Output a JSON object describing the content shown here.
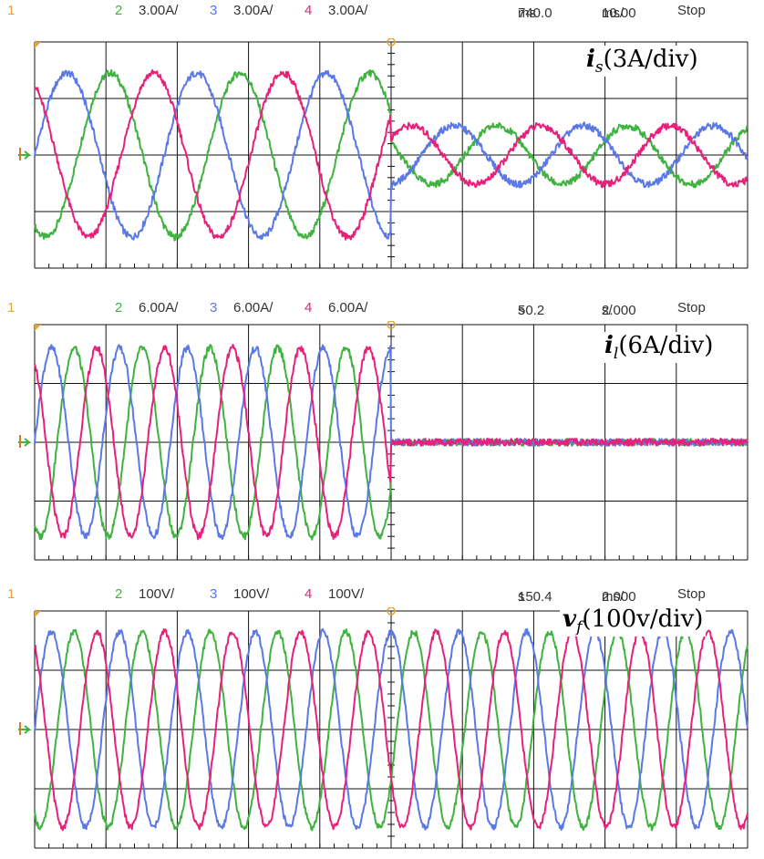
{
  "colors": {
    "ch1": "#e8a23a",
    "ch2": "#3fb23f",
    "ch3": "#5a78e6",
    "ch4": "#e8207a",
    "grid": "#111111"
  },
  "chart_data": [
    {
      "type": "line",
      "header": {
        "ch1": "1",
        "ch2": "2",
        "ch2_scale": "3.00A/",
        "ch3": "3",
        "ch3_scale": "3.00A/",
        "ch4": "4",
        "ch4_scale": "3.00A/",
        "position": "740.0",
        "position_unit": "ms",
        "timebase": "10.00",
        "timebase_unit": "ms/",
        "state": "Stop"
      },
      "label": {
        "symbol": "i",
        "sub": "s",
        "text": "(3A/div)"
      },
      "divisions": {
        "x": 10,
        "y": 4
      },
      "ylim": [
        -2,
        2
      ],
      "trigger_division": 5,
      "series": [
        {
          "channel": "2",
          "color": "ch2",
          "amplitude_before": 1.45,
          "amplitude_after": 0.45,
          "phase_deg": 240,
          "cycles_per_div": 0.55,
          "noise": 0.06
        },
        {
          "channel": "3",
          "color": "ch3",
          "amplitude_before": 1.45,
          "amplitude_after": 0.45,
          "phase_deg": 0,
          "cycles_per_div": 0.55,
          "noise": 0.06
        },
        {
          "channel": "4",
          "color": "ch4",
          "amplitude_before": 1.45,
          "amplitude_after": 0.45,
          "phase_deg": 120,
          "cycles_per_div": 0.55,
          "noise": 0.06
        }
      ],
      "offset_after": 0.2
    },
    {
      "type": "line",
      "header": {
        "ch1": "1",
        "ch2": "2",
        "ch2_scale": "6.00A/",
        "ch3": "3",
        "ch3_scale": "6.00A/",
        "ch4": "4",
        "ch4_scale": "6.00A/",
        "position": "50.2",
        "position_unit": "s",
        "timebase": "2.000",
        "timebase_unit": "s/",
        "state": "Stop"
      },
      "label": {
        "symbol": "i",
        "sub": "l",
        "text": "(6A/div)"
      },
      "divisions": {
        "x": 10,
        "y": 4
      },
      "ylim": [
        -2,
        2
      ],
      "trigger_division": 5,
      "series": [
        {
          "channel": "2",
          "color": "ch2",
          "amplitude_before": 1.6,
          "amplitude_after": 0,
          "phase_deg": 240,
          "cycles_per_div": 1.05,
          "noise": 0.06
        },
        {
          "channel": "3",
          "color": "ch3",
          "amplitude_before": 1.6,
          "amplitude_after": 0,
          "phase_deg": 0,
          "cycles_per_div": 1.05,
          "noise": 0.06
        },
        {
          "channel": "4",
          "color": "ch4",
          "amplitude_before": 1.6,
          "amplitude_after": 0,
          "phase_deg": 120,
          "cycles_per_div": 1.05,
          "noise": 0.06
        }
      ],
      "offset_after": 0
    },
    {
      "type": "line",
      "header": {
        "ch1": "1",
        "ch2": "2",
        "ch2_scale": "100V/",
        "ch3": "3",
        "ch3_scale": "100V/",
        "ch4": "4",
        "ch4_scale": "100V/",
        "position": "150.4",
        "position_unit": "s",
        "timebase": "2.000",
        "timebase_unit": "ms/",
        "state": "Stop"
      },
      "label": {
        "symbol": "v",
        "sub": "f",
        "text": "(100v/div)"
      },
      "divisions": {
        "x": 10,
        "y": 4
      },
      "ylim": [
        -2,
        2
      ],
      "trigger_division": 5,
      "series": [
        {
          "channel": "2",
          "color": "ch2",
          "amplitude_before": 1.65,
          "amplitude_after": 1.65,
          "phase_deg": 240,
          "cycles_per_div": 1.05,
          "noise": 0.05
        },
        {
          "channel": "3",
          "color": "ch3",
          "amplitude_before": 1.65,
          "amplitude_after": 1.65,
          "phase_deg": 0,
          "cycles_per_div": 1.05,
          "noise": 0.05
        },
        {
          "channel": "4",
          "color": "ch4",
          "amplitude_before": 1.65,
          "amplitude_after": 1.65,
          "phase_deg": 120,
          "cycles_per_div": 1.05,
          "noise": 0.05
        }
      ],
      "offset_after": 0
    }
  ]
}
